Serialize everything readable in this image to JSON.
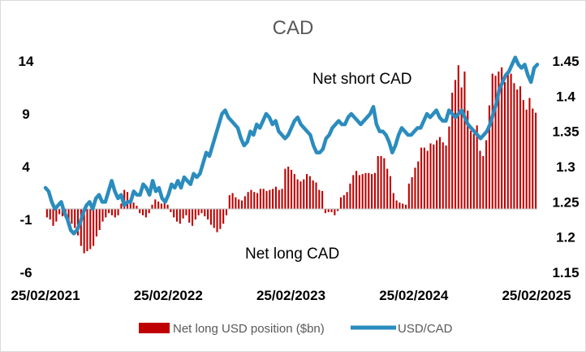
{
  "chart_data": {
    "type": "bar+line",
    "title": "CAD",
    "x_ticks": [
      "25/02/2021",
      "25/02/2022",
      "25/02/2023",
      "25/02/2024",
      "25/02/2025"
    ],
    "y_left_ticks": [
      "14",
      "9",
      "4",
      "-1",
      "-6"
    ],
    "y_left_range": [
      -6,
      14
    ],
    "y_right_ticks": [
      "1.45",
      "1.4",
      "1.35",
      "1.3",
      "1.25",
      "1.2",
      "1.15"
    ],
    "y_right_range": [
      1.15,
      1.45
    ],
    "annotations": {
      "upper": "Net short CAD",
      "lower": "Net long CAD"
    },
    "series": [
      {
        "name": "Net long USD position ($bn)",
        "type": "bar",
        "axis": "left",
        "color": "#C00000",
        "x_start": "2021-02-25",
        "x_end": "2025-02-25",
        "values": [
          -0.8,
          -1.0,
          -1.6,
          -1.2,
          -0.5,
          -0.7,
          -0.5,
          -1.1,
          -1.4,
          -1.8,
          -2.5,
          -3.5,
          -4.2,
          -4.0,
          -3.8,
          -3.5,
          -2.6,
          -2.0,
          -1.2,
          -0.8,
          -0.4,
          -0.6,
          -0.8,
          -0.6,
          0.5,
          1.8,
          1.6,
          1.0,
          0.6,
          0.3,
          -0.4,
          -0.6,
          -0.8,
          -0.4,
          0.4,
          0.9,
          0.7,
          0.5,
          0.6,
          0.4,
          -0.3,
          -0.8,
          -1.2,
          -1.4,
          -0.9,
          -0.6,
          -1.3,
          -1.6,
          -1.0,
          -0.6,
          -0.4,
          -0.7,
          -1.0,
          -1.5,
          -1.8,
          -2.2,
          -1.9,
          -1.4,
          -0.6,
          1.3,
          1.5,
          1.1,
          0.9,
          0.8,
          1.2,
          1.6,
          1.8,
          1.6,
          1.5,
          1.9,
          1.9,
          1.7,
          1.8,
          1.9,
          2.1,
          1.8,
          1.9,
          3.8,
          4.0,
          3.7,
          3.3,
          2.8,
          2.6,
          2.8,
          3.3,
          3.1,
          2.7,
          2.5,
          1.8,
          1.7,
          -0.4,
          -0.3,
          -0.3,
          -0.6,
          -0.2,
          1.1,
          1.3,
          1.6,
          2.4,
          3.2,
          3.6,
          3.2,
          3.3,
          3.4,
          3.4,
          3.3,
          3.4,
          5.0,
          5.0,
          4.8,
          3.8,
          3.1,
          1.5,
          0.8,
          0.6,
          0.5,
          0.4,
          2.4,
          3.0,
          3.9,
          4.5,
          5.8,
          5.8,
          5.5,
          6.2,
          6.1,
          6.5,
          6.8,
          6.3,
          6.0,
          7.8,
          11.0,
          12.2,
          13.6,
          11.5,
          13.0,
          9.3,
          7.4,
          7.1,
          7.9,
          5.5,
          5.0,
          6.5,
          9.8,
          12.8,
          12.6,
          13.0,
          13.4,
          12.0,
          12.8,
          12.8,
          11.9,
          11.3,
          11.6,
          10.3,
          9.4,
          10.5,
          9.5,
          9.1
        ]
      },
      {
        "name": "USD/CAD",
        "type": "line",
        "axis": "right",
        "color": "#2B8CBE",
        "x_start": "2021-02-25",
        "x_end": "2025-02-25",
        "values": [
          1.27,
          1.265,
          1.25,
          1.24,
          1.245,
          1.25,
          1.235,
          1.225,
          1.21,
          1.205,
          1.21,
          1.22,
          1.235,
          1.245,
          1.25,
          1.24,
          1.255,
          1.26,
          1.25,
          1.25,
          1.265,
          1.28,
          1.265,
          1.255,
          1.26,
          1.245,
          1.25,
          1.25,
          1.265,
          1.26,
          1.26,
          1.275,
          1.27,
          1.26,
          1.28,
          1.265,
          1.27,
          1.255,
          1.25,
          1.26,
          1.275,
          1.27,
          1.28,
          1.27,
          1.285,
          1.28,
          1.275,
          1.29,
          1.285,
          1.29,
          1.305,
          1.32,
          1.315,
          1.33,
          1.345,
          1.36,
          1.375,
          1.38,
          1.37,
          1.365,
          1.36,
          1.355,
          1.34,
          1.33,
          1.335,
          1.35,
          1.345,
          1.36,
          1.355,
          1.365,
          1.375,
          1.37,
          1.36,
          1.365,
          1.35,
          1.345,
          1.34,
          1.345,
          1.355,
          1.365,
          1.37,
          1.36,
          1.355,
          1.35,
          1.345,
          1.33,
          1.32,
          1.32,
          1.325,
          1.34,
          1.345,
          1.355,
          1.36,
          1.365,
          1.36,
          1.36,
          1.37,
          1.375,
          1.37,
          1.365,
          1.36,
          1.365,
          1.37,
          1.375,
          1.385,
          1.36,
          1.35,
          1.35,
          1.345,
          1.335,
          1.32,
          1.33,
          1.345,
          1.355,
          1.35,
          1.345,
          1.345,
          1.35,
          1.355,
          1.355,
          1.365,
          1.375,
          1.37,
          1.375,
          1.38,
          1.37,
          1.365,
          1.365,
          1.38,
          1.375,
          1.37,
          1.375,
          1.38,
          1.37,
          1.36,
          1.355,
          1.35,
          1.345,
          1.34,
          1.345,
          1.35,
          1.36,
          1.375,
          1.39,
          1.41,
          1.42,
          1.43,
          1.435,
          1.445,
          1.455,
          1.445,
          1.44,
          1.445,
          1.43,
          1.42,
          1.44,
          1.445
        ]
      }
    ],
    "legend_position": "bottom",
    "grid": false
  }
}
